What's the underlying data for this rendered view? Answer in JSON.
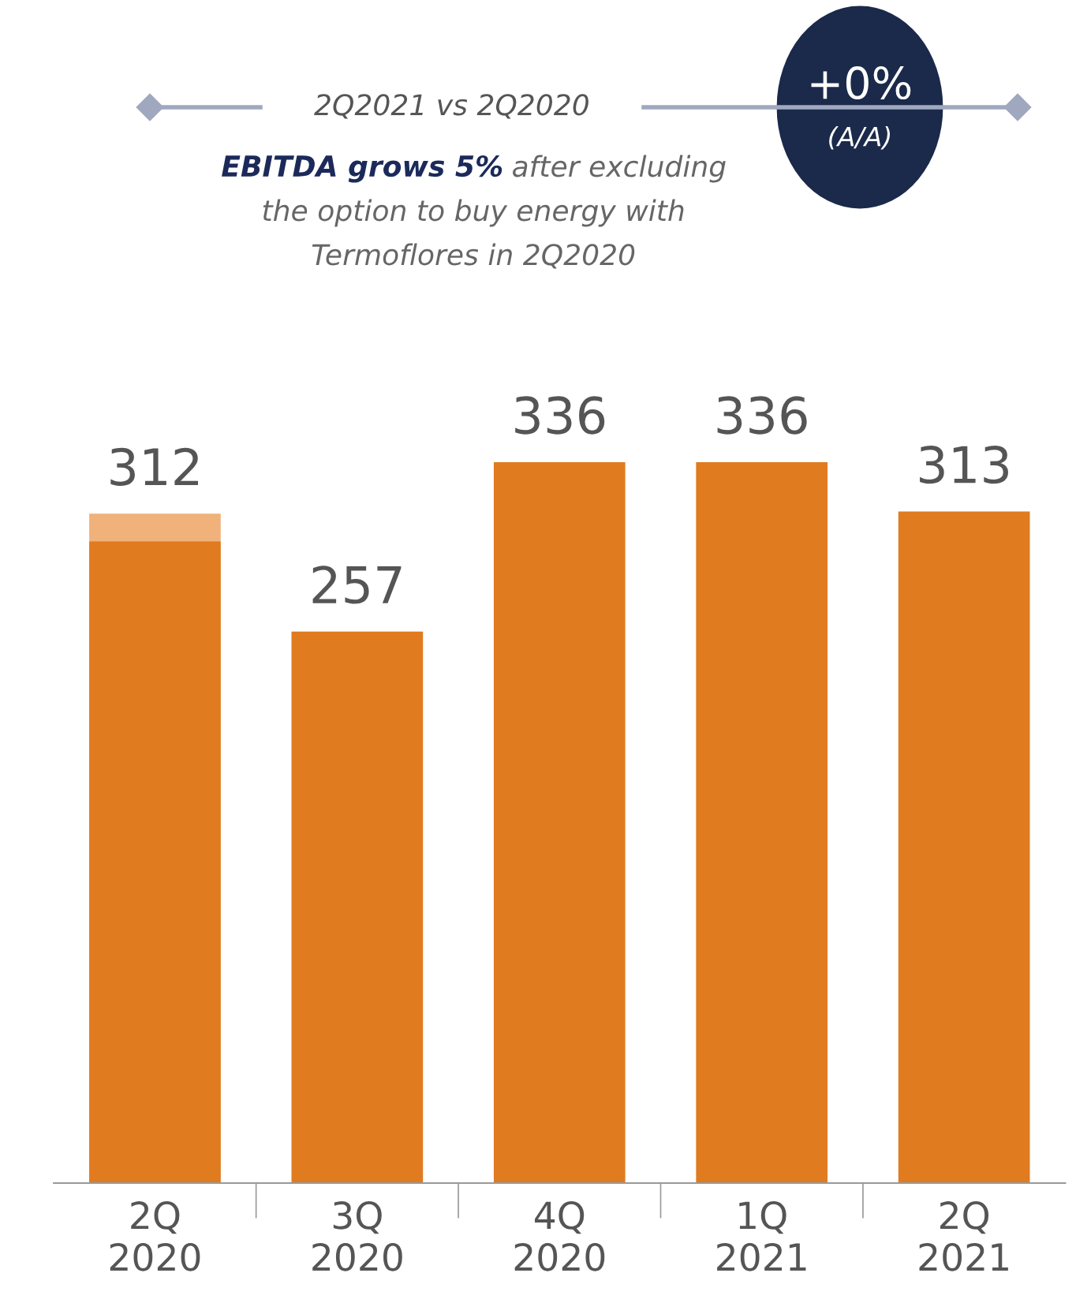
{
  "chart_data": {
    "type": "bar",
    "categories": [
      "2Q\n2020",
      "3Q\n2020",
      "4Q\n2020",
      "1Q\n2021",
      "2Q\n2021"
    ],
    "series": [
      {
        "color": "#f0b27a",
        "values": [
          312,
          null,
          null,
          null,
          null
        ],
        "value_labels": [
          "312",
          null,
          null,
          null,
          null
        ]
      },
      {
        "color": "#e07b20",
        "values": [
          299,
          257,
          336,
          336,
          313
        ],
        "value_labels": [
          null,
          "257",
          "336",
          "336",
          "313"
        ]
      }
    ],
    "annotations": [
      "2Q2021 vs 2Q2020",
      "EBITDA grows 5%",
      "after excluding\nthe option to buy energy with\nTermoflores in 2Q2020",
      "+0%",
      "(A/A)"
    ],
    "grid": false,
    "legend": false
  }
}
